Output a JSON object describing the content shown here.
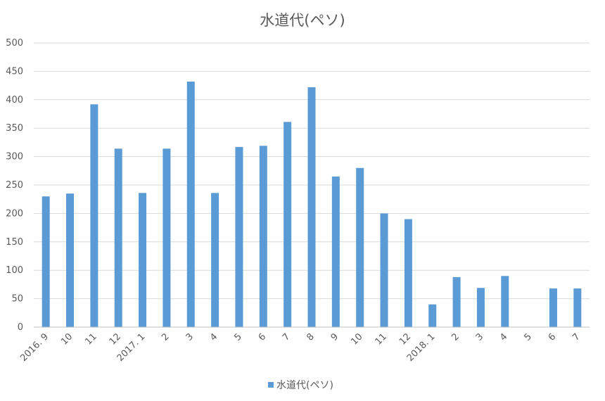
{
  "chart_data": {
    "type": "bar",
    "title": "水道代(ペソ)",
    "xlabel": "",
    "ylabel": "",
    "categories": [
      "2016. 9",
      "10",
      "11",
      "12",
      "2017. 1",
      "2",
      "3",
      "4",
      "5",
      "6",
      "7",
      "8",
      "9",
      "10",
      "11",
      "12",
      "2018. 1",
      "2",
      "3",
      "4",
      "5",
      "6",
      "7"
    ],
    "series": [
      {
        "name": "水道代(ペソ)",
        "color": "#5b9bd5",
        "values": [
          230,
          235,
          392,
          314,
          236,
          314,
          432,
          236,
          317,
          319,
          361,
          422,
          265,
          280,
          200,
          190,
          40,
          88,
          69,
          90,
          0,
          68,
          68
        ]
      }
    ],
    "ylim": [
      0,
      500
    ],
    "yticks": [
      0,
      50,
      100,
      150,
      200,
      250,
      300,
      350,
      400,
      450,
      500
    ],
    "grid": true,
    "legend_position": "bottom"
  }
}
